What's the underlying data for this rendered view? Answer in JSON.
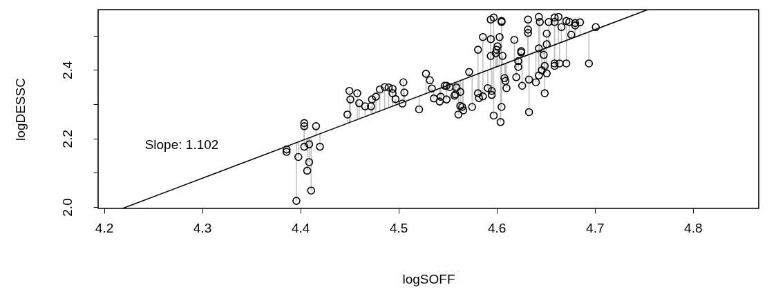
{
  "chart_data": {
    "type": "scatter",
    "xlabel": "logSOFF",
    "ylabel": "logDESSC",
    "xlim": [
      4.194,
      4.867
    ],
    "ylim": [
      1.996,
      2.576
    ],
    "xticks": [
      4.2,
      4.3,
      4.4,
      4.5,
      4.6,
      4.7,
      4.8
    ],
    "yticks": [
      {
        "value": 2.0,
        "label": "2.0"
      },
      {
        "value": 2.1,
        "label": null
      },
      {
        "value": 2.2,
        "label": "2.2"
      },
      {
        "value": 2.3,
        "label": null
      },
      {
        "value": 2.4,
        "label": "2.4"
      },
      {
        "value": 2.5,
        "label": null
      }
    ],
    "annotations": [
      "Slope: 1.102"
    ],
    "series": [
      {
        "marker": "circle",
        "color": "#000000",
        "x": [
          4.386,
          4.386,
          4.398,
          4.396,
          4.404,
          4.404,
          4.404,
          4.409,
          4.409,
          4.407,
          4.411,
          4.416,
          4.42,
          4.448,
          4.45,
          4.451,
          4.458,
          4.46,
          4.466,
          4.472,
          4.473,
          4.477,
          4.481,
          4.486,
          4.49,
          4.494,
          4.494,
          4.497,
          4.504,
          4.505,
          4.506,
          4.521,
          4.528,
          4.532,
          4.534,
          4.536,
          4.542,
          4.543,
          4.547,
          4.549,
          4.552,
          4.549,
          4.557,
          4.559,
          4.563,
          4.561,
          4.558,
          4.563,
          4.565,
          4.566,
          4.572,
          4.575,
          4.581,
          4.581,
          4.582,
          4.586,
          4.586,
          4.591,
          4.594,
          4.597,
          4.594,
          4.594,
          4.595,
          4.595,
          4.605,
          4.605,
          4.603,
          4.601,
          4.6,
          4.599,
          4.606,
          4.597,
          4.604,
          4.605,
          4.608,
          4.609,
          4.61,
          4.618,
          4.62,
          4.622,
          4.622,
          4.625,
          4.625,
          4.626,
          4.632,
          4.632,
          4.632,
          4.633,
          4.633,
          4.64,
          4.643,
          4.643,
          4.644,
          4.643,
          4.646,
          4.648,
          4.649,
          4.649,
          4.651,
          4.651,
          4.651,
          4.653,
          4.659,
          4.659,
          4.659,
          4.659,
          4.663,
          4.664,
          4.666,
          4.671,
          4.671,
          4.674,
          4.676,
          4.68,
          4.68,
          4.685,
          4.694,
          4.701
        ],
        "values": [
          2.168,
          2.161,
          2.146,
          2.018,
          2.245,
          2.236,
          2.176,
          2.183,
          2.131,
          2.106,
          2.048,
          2.236,
          2.176,
          2.27,
          2.339,
          2.314,
          2.332,
          2.303,
          2.294,
          2.294,
          2.314,
          2.322,
          2.343,
          2.35,
          2.349,
          2.345,
          2.332,
          2.315,
          2.302,
          2.364,
          2.334,
          2.285,
          2.389,
          2.37,
          2.346,
          2.317,
          2.308,
          2.322,
          2.354,
          2.354,
          2.35,
          2.314,
          2.325,
          2.349,
          2.295,
          2.27,
          2.329,
          2.336,
          2.292,
          2.282,
          2.394,
          2.292,
          2.459,
          2.332,
          2.318,
          2.496,
          2.323,
          2.347,
          2.547,
          2.553,
          2.49,
          2.441,
          2.327,
          2.339,
          2.543,
          2.54,
          2.496,
          2.469,
          2.459,
          2.449,
          2.441,
          2.267,
          2.248,
          2.292,
          2.376,
          2.368,
          2.347,
          2.488,
          2.379,
          2.426,
          2.409,
          2.451,
          2.455,
          2.354,
          2.547,
          2.518,
          2.508,
          2.372,
          2.277,
          2.364,
          2.384,
          2.555,
          2.54,
          2.463,
          2.399,
          2.444,
          2.412,
          2.332,
          2.39,
          2.506,
          2.475,
          2.54,
          2.553,
          2.54,
          2.419,
          2.412,
          2.555,
          2.419,
          2.525,
          2.543,
          2.419,
          2.54,
          2.503,
          2.537,
          2.53,
          2.539,
          2.419,
          2.525
        ],
        "errors": [
          [
            2.168,
            2.177
          ],
          [
            2.161,
            2.177
          ],
          [
            2.146,
            2.19
          ],
          [
            2.018,
            2.187
          ],
          [
            2.196,
            2.245
          ],
          [
            2.196,
            2.236
          ],
          [
            2.176,
            2.196
          ],
          [
            2.183,
            2.201
          ],
          [
            2.131,
            2.201
          ],
          [
            2.106,
            2.199
          ],
          [
            2.048,
            2.204
          ],
          [
            2.209,
            2.236
          ],
          [
            2.176,
            2.213
          ],
          [
            2.244,
            2.27
          ],
          [
            2.246,
            2.339
          ],
          [
            2.248,
            2.314
          ],
          [
            2.255,
            2.332
          ],
          [
            2.257,
            2.303
          ],
          [
            2.264,
            2.294
          ],
          [
            2.27,
            2.294
          ],
          [
            2.271,
            2.314
          ],
          [
            2.275,
            2.322
          ],
          [
            2.28,
            2.343
          ],
          [
            2.285,
            2.35
          ],
          [
            2.288,
            2.349
          ],
          [
            2.294,
            2.345
          ],
          [
            2.294,
            2.332
          ],
          [
            2.297,
            2.315
          ],
          null,
          [
            2.306,
            2.364
          ],
          [
            2.307,
            2.334
          ],
          [
            2.285,
            2.323
          ],
          [
            2.331,
            2.389
          ],
          [
            2.335,
            2.37
          ],
          [
            2.337,
            2.346
          ],
          [
            2.317,
            2.339
          ],
          [
            2.308,
            2.346
          ],
          [
            2.322,
            2.348
          ],
          null,
          null,
          [
            2.35,
            2.357
          ],
          [
            2.314,
            2.353
          ],
          [
            2.325,
            2.362
          ],
          [
            2.349,
            2.364
          ],
          [
            2.295,
            2.369
          ],
          [
            2.27,
            2.367
          ],
          [
            2.329,
            2.363
          ],
          [
            2.336,
            2.369
          ],
          [
            2.292,
            2.371
          ],
          [
            2.282,
            2.372
          ],
          [
            2.379,
            2.394
          ],
          [
            2.292,
            2.382
          ],
          [
            2.388,
            2.459
          ],
          [
            2.332,
            2.388
          ],
          [
            2.318,
            2.39
          ],
          [
            2.393,
            2.496
          ],
          [
            2.323,
            2.394
          ],
          [
            2.347,
            2.399
          ],
          [
            2.403,
            2.547
          ],
          [
            2.406,
            2.553
          ],
          [
            2.403,
            2.49
          ],
          [
            2.402,
            2.441
          ],
          [
            2.327,
            2.404
          ],
          [
            2.339,
            2.404
          ],
          [
            2.415,
            2.543
          ],
          [
            2.415,
            2.54
          ],
          [
            2.411,
            2.496
          ],
          [
            2.409,
            2.469
          ],
          [
            2.409,
            2.459
          ],
          [
            2.409,
            2.449
          ],
          [
            2.415,
            2.441
          ],
          [
            2.267,
            2.408
          ],
          [
            2.248,
            2.411
          ],
          [
            2.292,
            2.415
          ],
          [
            2.376,
            2.417
          ],
          [
            2.368,
            2.418
          ],
          [
            2.347,
            2.42
          ],
          [
            2.428,
            2.488
          ],
          [
            2.379,
            2.431
          ],
          [
            2.426,
            2.433
          ],
          [
            2.409,
            2.433
          ],
          [
            2.436,
            2.451
          ],
          [
            2.436,
            2.455
          ],
          [
            2.354,
            2.437
          ],
          [
            2.444,
            2.547
          ],
          [
            2.444,
            2.518
          ],
          [
            2.444,
            2.508
          ],
          [
            2.372,
            2.445
          ],
          [
            2.277,
            2.445
          ],
          [
            2.364,
            2.452
          ],
          [
            2.384,
            2.455
          ],
          [
            2.456,
            2.555
          ],
          [
            2.456,
            2.54
          ],
          [
            2.456,
            2.463
          ],
          [
            2.399,
            2.459
          ],
          [
            2.444,
            2.461
          ],
          [
            2.412,
            2.462
          ],
          [
            2.332,
            2.462
          ],
          [
            2.39,
            2.465
          ],
          [
            2.465,
            2.506
          ],
          [
            2.465,
            2.475
          ],
          [
            2.466,
            2.54
          ],
          [
            2.473,
            2.553
          ],
          [
            2.473,
            2.54
          ],
          [
            2.419,
            2.473
          ],
          [
            2.412,
            2.473
          ],
          [
            2.477,
            2.555
          ],
          [
            2.419,
            2.478
          ],
          [
            2.481,
            2.525
          ],
          [
            2.486,
            2.543
          ],
          [
            2.419,
            2.486
          ],
          [
            2.489,
            2.54
          ],
          [
            2.492,
            2.503
          ],
          [
            2.495,
            2.537
          ],
          [
            2.495,
            2.53
          ],
          [
            2.502,
            2.539
          ],
          [
            2.419,
            2.511
          ],
          [
            2.518,
            2.525
          ]
        ]
      },
      {
        "type": "line",
        "color": "#000000",
        "x": [
          4.219,
          4.753
        ],
        "values": [
          1.996,
          2.575
        ]
      }
    ]
  }
}
